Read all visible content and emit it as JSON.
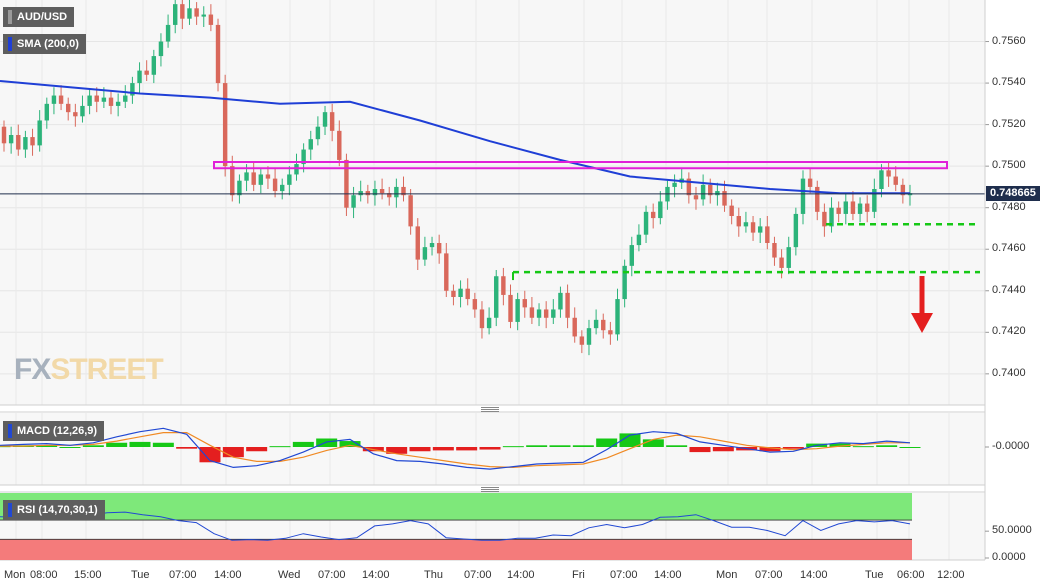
{
  "chart_data": {
    "type": "candlestick",
    "symbol": "AUD/USD",
    "overlay": {
      "name": "SMA (200,0)",
      "color": "#1f3fd6"
    },
    "price_axis": {
      "ticks": [
        "0.7560",
        "0.7540",
        "0.7520",
        "0.7500",
        "0.7480",
        "0.7460",
        "0.7440",
        "0.7420",
        "0.7400"
      ],
      "ylim": [
        0.7385,
        0.758
      ]
    },
    "last_price": "0.748665",
    "time_axis": [
      "Mon",
      "08:00",
      "15:00",
      "Tue",
      "07:00",
      "14:00",
      "Wed",
      "07:00",
      "14:00",
      "Thu",
      "07:00",
      "14:00",
      "Fri",
      "07:00",
      "14:00",
      "Mon",
      "07:00",
      "14:00",
      "Tue",
      "06:00",
      "12:00"
    ],
    "resistance_zone": [
      0.7499,
      0.7502
    ],
    "support_levels": [
      0.7472,
      0.7449
    ],
    "candles": [
      [
        0.7519,
        0.7511
      ],
      [
        0.7511,
        0.7515
      ],
      [
        0.7515,
        0.7508
      ],
      [
        0.7508,
        0.7514
      ],
      [
        0.7514,
        0.751
      ],
      [
        0.751,
        0.7522
      ],
      [
        0.7522,
        0.753
      ],
      [
        0.753,
        0.7534
      ],
      [
        0.7534,
        0.753
      ],
      [
        0.753,
        0.7526
      ],
      [
        0.7526,
        0.7524
      ],
      [
        0.7524,
        0.7529
      ],
      [
        0.7529,
        0.7534
      ],
      [
        0.7534,
        0.7531
      ],
      [
        0.7531,
        0.7533
      ],
      [
        0.7533,
        0.7529
      ],
      [
        0.7529,
        0.7531
      ],
      [
        0.7531,
        0.7534
      ],
      [
        0.7534,
        0.754
      ],
      [
        0.754,
        0.7546
      ],
      [
        0.7546,
        0.7544
      ],
      [
        0.7544,
        0.7553
      ],
      [
        0.7553,
        0.756
      ],
      [
        0.756,
        0.7568
      ],
      [
        0.7568,
        0.7578
      ],
      [
        0.7578,
        0.7571
      ],
      [
        0.7571,
        0.7576
      ],
      [
        0.7576,
        0.7572
      ],
      [
        0.7572,
        0.7573
      ],
      [
        0.7573,
        0.7568
      ],
      [
        0.7568,
        0.754
      ],
      [
        0.754,
        0.75
      ],
      [
        0.75,
        0.7486
      ],
      [
        0.7486,
        0.7493
      ],
      [
        0.7493,
        0.7497
      ],
      [
        0.7497,
        0.7491
      ],
      [
        0.7491,
        0.7496
      ],
      [
        0.7496,
        0.7494
      ],
      [
        0.7494,
        0.7488
      ],
      [
        0.7488,
        0.7491
      ],
      [
        0.7491,
        0.7496
      ],
      [
        0.7496,
        0.7501
      ],
      [
        0.7501,
        0.7508
      ],
      [
        0.7508,
        0.7513
      ],
      [
        0.7513,
        0.7519
      ],
      [
        0.7519,
        0.7526
      ],
      [
        0.7526,
        0.7517
      ],
      [
        0.7517,
        0.7503
      ],
      [
        0.7503,
        0.748
      ],
      [
        0.748,
        0.7486
      ],
      [
        0.7486,
        0.7488
      ],
      [
        0.7488,
        0.7486
      ],
      [
        0.7486,
        0.7489
      ],
      [
        0.7489,
        0.7487
      ],
      [
        0.7487,
        0.7485
      ],
      [
        0.7485,
        0.749
      ],
      [
        0.749,
        0.7486
      ],
      [
        0.7486,
        0.7471
      ],
      [
        0.7471,
        0.7455
      ],
      [
        0.7455,
        0.7461
      ],
      [
        0.7461,
        0.7463
      ],
      [
        0.7463,
        0.7458
      ],
      [
        0.7458,
        0.744
      ],
      [
        0.744,
        0.7437
      ],
      [
        0.7437,
        0.7441
      ],
      [
        0.7441,
        0.7436
      ],
      [
        0.7436,
        0.7431
      ],
      [
        0.7431,
        0.7422
      ],
      [
        0.7422,
        0.7427
      ],
      [
        0.7427,
        0.7447
      ],
      [
        0.7447,
        0.7438
      ],
      [
        0.7438,
        0.7425
      ],
      [
        0.7425,
        0.7436
      ],
      [
        0.7436,
        0.7432
      ],
      [
        0.7432,
        0.7427
      ],
      [
        0.7427,
        0.7431
      ],
      [
        0.7431,
        0.7427
      ],
      [
        0.7427,
        0.7431
      ],
      [
        0.7431,
        0.7439
      ],
      [
        0.7439,
        0.7427
      ],
      [
        0.7427,
        0.7418
      ],
      [
        0.7418,
        0.7414
      ],
      [
        0.7414,
        0.7422
      ],
      [
        0.7422,
        0.7426
      ],
      [
        0.7426,
        0.7421
      ],
      [
        0.7421,
        0.7419
      ],
      [
        0.7419,
        0.7436
      ],
      [
        0.7436,
        0.7452
      ],
      [
        0.7452,
        0.7462
      ],
      [
        0.7462,
        0.7467
      ],
      [
        0.7467,
        0.7478
      ],
      [
        0.7478,
        0.7475
      ],
      [
        0.7475,
        0.7483
      ],
      [
        0.7483,
        0.749
      ],
      [
        0.749,
        0.7492
      ],
      [
        0.7492,
        0.7494
      ],
      [
        0.7494,
        0.7486
      ],
      [
        0.7486,
        0.7484
      ],
      [
        0.7484,
        0.7491
      ],
      [
        0.7491,
        0.7486
      ],
      [
        0.7486,
        0.7488
      ],
      [
        0.7488,
        0.7481
      ],
      [
        0.7481,
        0.7476
      ],
      [
        0.7476,
        0.7471
      ],
      [
        0.7471,
        0.7473
      ],
      [
        0.7473,
        0.7468
      ],
      [
        0.7468,
        0.7471
      ],
      [
        0.7471,
        0.7463
      ],
      [
        0.7463,
        0.7456
      ],
      [
        0.7456,
        0.7451
      ],
      [
        0.7451,
        0.7461
      ],
      [
        0.7461,
        0.7477
      ],
      [
        0.7477,
        0.7494
      ],
      [
        0.7494,
        0.749
      ],
      [
        0.749,
        0.7478
      ],
      [
        0.7478,
        0.7471
      ],
      [
        0.7471,
        0.748
      ],
      [
        0.748,
        0.7477
      ],
      [
        0.7477,
        0.7483
      ],
      [
        0.7483,
        0.7477
      ],
      [
        0.7477,
        0.7482
      ],
      [
        0.7482,
        0.7478
      ],
      [
        0.7478,
        0.7489
      ],
      [
        0.7489,
        0.7498
      ],
      [
        0.7498,
        0.7495
      ],
      [
        0.7495,
        0.7491
      ],
      [
        0.7491,
        0.7486
      ],
      [
        0.7486,
        0.7487
      ]
    ],
    "sma": [
      0.7541,
      0.7538,
      0.7535,
      0.7533,
      0.753,
      0.7531,
      0.7522,
      0.7512,
      0.7503,
      0.7495,
      0.7492,
      0.7489,
      0.7487,
      0.7487
    ],
    "macd": {
      "name": "MACD (12,26,9)",
      "axis_label": "-0.0000",
      "line": [
        0.2,
        0.3,
        0.4,
        0.2,
        0.5,
        1.2,
        1.8,
        2.2,
        1.5,
        -1.6,
        -2.4,
        -2.2,
        -1.6,
        -0.6,
        0.6,
        0.9,
        -0.8,
        -1.6,
        -1.7,
        -2.0,
        -2.4,
        -2.6,
        -2.3,
        -2.0,
        -1.9,
        -1.8,
        -0.3,
        1.4,
        1.8,
        1.6,
        0.6,
        0.2,
        -0.2,
        -0.6,
        -0.5,
        0.2,
        0.5,
        0.4,
        0.7,
        0.5
      ],
      "signal": [
        0.1,
        0.1,
        0.2,
        0.2,
        0.3,
        0.7,
        1.2,
        1.7,
        1.7,
        0.2,
        -1.2,
        -1.7,
        -1.7,
        -1.2,
        -0.4,
        0.2,
        -0.3,
        -0.8,
        -1.2,
        -1.6,
        -2.0,
        -2.3,
        -2.4,
        -2.2,
        -2.1,
        -2.0,
        -1.3,
        -0.2,
        0.9,
        1.4,
        1.2,
        0.7,
        0.2,
        -0.1,
        -0.3,
        -0.2,
        0.1,
        0.3,
        0.5,
        0.5
      ],
      "histogram": [
        0.1,
        0.2,
        0.2,
        0.0,
        0.2,
        0.5,
        0.6,
        0.5,
        -0.2,
        -1.8,
        -1.2,
        -0.5,
        0.1,
        0.6,
        1.0,
        0.7,
        -0.5,
        -0.8,
        -0.5,
        -0.4,
        -0.4,
        -0.3,
        0.1,
        0.2,
        0.2,
        0.2,
        1.0,
        1.6,
        0.9,
        0.2,
        -0.6,
        -0.5,
        -0.4,
        -0.5,
        -0.2,
        0.4,
        0.4,
        0.1,
        0.2,
        0.0
      ]
    },
    "rsi": {
      "name": "RSI (14,70,30,1)",
      "axis_labels": [
        "50.0000",
        "0.0000"
      ],
      "values": [
        66,
        65,
        67,
        64,
        62,
        68,
        72,
        73,
        69,
        66,
        60,
        57,
        40,
        30,
        31,
        30,
        33,
        40,
        35,
        31,
        34,
        52,
        55,
        60,
        55,
        34,
        32,
        30,
        30,
        33,
        33,
        38,
        37,
        49,
        54,
        49,
        54,
        65,
        66,
        69,
        60,
        50,
        50,
        45,
        37,
        60,
        45,
        55,
        60,
        58,
        60,
        55
      ]
    },
    "grid": true,
    "colors": {
      "bull": "#2cb37a",
      "bear": "#d9685b",
      "resistance": "#e020d8",
      "support": "#16c816",
      "macd_line": "#2148d3",
      "signal_line": "#f08a24",
      "rsi_overbought": "#7ee87a",
      "rsi_oversold": "#f47b7b",
      "arrow": "#e41f1f"
    }
  },
  "legends": {
    "main": "AUD/USD",
    "sma": "SMA (200,0)",
    "macd": "MACD (12,26,9)",
    "rsi": "RSI (14,70,30,1)"
  },
  "watermark": {
    "fx": "FX",
    "street": "STREET"
  }
}
